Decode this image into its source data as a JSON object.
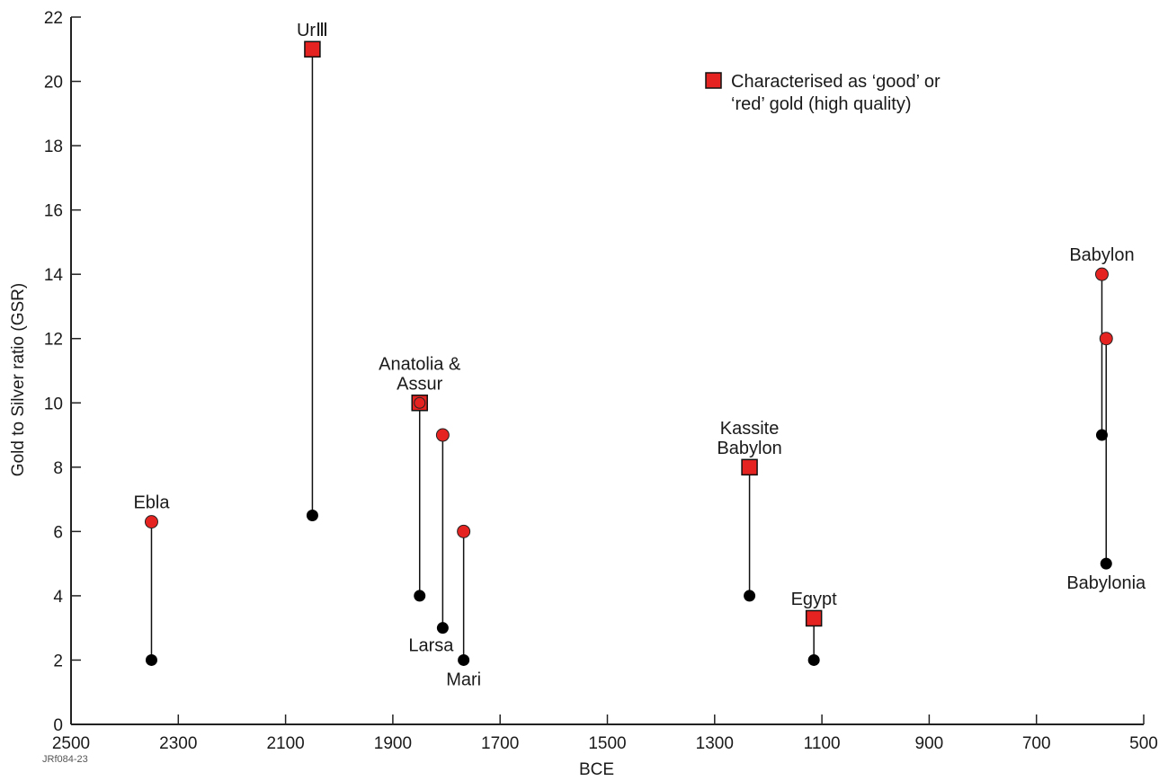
{
  "chart_data": {
    "type": "scatter",
    "xlabel": "BCE",
    "ylabel": "Gold to Silver ratio (GSR)",
    "xlim": [
      2500,
      500
    ],
    "ylim": [
      0,
      22
    ],
    "x_reversed": true,
    "xticks": [
      2500,
      2300,
      2100,
      1900,
      1700,
      1500,
      1300,
      1100,
      900,
      700,
      500
    ],
    "yticks": [
      0,
      2,
      4,
      6,
      8,
      10,
      12,
      14,
      16,
      18,
      20,
      22
    ],
    "legend": {
      "label_lines": [
        "Characterised as ‘good’ or",
        "‘red’ gold (high quality)"
      ],
      "position": "top-right",
      "marker": "red-square"
    },
    "credit": "JRf084-23",
    "colors": {
      "red": "#e52421",
      "black": "#000000"
    },
    "ranges": [
      {
        "site": "Ebla",
        "x": 2350,
        "low": 2,
        "high": 6.3,
        "high_marker": "circle"
      },
      {
        "site": "Ur III",
        "x": 2050,
        "low": 6.5,
        "high": 21,
        "high_marker": "square"
      },
      {
        "site": "Anatolia & Assur",
        "x": 1850,
        "low": 4,
        "high": 10,
        "high_marker": "square-circle"
      },
      {
        "site": "Larsa",
        "x": 1807,
        "low": 3,
        "high": 9,
        "high_marker": "circle"
      },
      {
        "site": "Mari",
        "x": 1768,
        "low": 2,
        "high": 6,
        "high_marker": "circle"
      },
      {
        "site": "Kassite Babylon",
        "x": 1235,
        "low": 4,
        "high": 8,
        "high_marker": "square"
      },
      {
        "site": "Egypt",
        "x": 1115,
        "low": 2,
        "high": 3.3,
        "high_marker": "square"
      },
      {
        "site": "Babylon",
        "x": 578,
        "low": 9,
        "high": 14,
        "high_marker": "circle"
      },
      {
        "site": "Babylonia",
        "x": 570,
        "low": 5,
        "high": 12,
        "high_marker": "circle"
      }
    ],
    "labels": [
      {
        "lines": [
          "Ebla"
        ],
        "x": 2350,
        "y": 6.3,
        "pos": "above"
      },
      {
        "lines": [
          "UrⅢ"
        ],
        "x": 2050,
        "y": 21,
        "pos": "above"
      },
      {
        "lines": [
          "Anatolia &",
          "Assur"
        ],
        "x": 1850,
        "y": 10,
        "pos": "above"
      },
      {
        "lines": [
          "Larsa"
        ],
        "x": 1807,
        "y": 3,
        "pos": "below-left"
      },
      {
        "lines": [
          "Mari"
        ],
        "x": 1768,
        "y": 2,
        "pos": "below"
      },
      {
        "lines": [
          "Kassite",
          "Babylon"
        ],
        "x": 1235,
        "y": 8,
        "pos": "above"
      },
      {
        "lines": [
          "Egypt"
        ],
        "x": 1115,
        "y": 3.3,
        "pos": "above"
      },
      {
        "lines": [
          "Babylon"
        ],
        "x": 578,
        "y": 14,
        "pos": "above"
      },
      {
        "lines": [
          "Babylonia"
        ],
        "x": 570,
        "y": 5,
        "pos": "below"
      }
    ]
  }
}
